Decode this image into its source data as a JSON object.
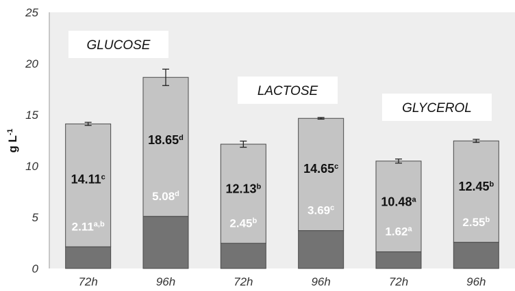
{
  "chart_data": {
    "type": "bar",
    "stacked": true,
    "categories": [
      "72h",
      "96h",
      "72h",
      "96h",
      "72h",
      "96h"
    ],
    "groups": [
      "GLUCOSE",
      "LACTOSE",
      "GLYCEROL"
    ],
    "ylabel_main": "g L",
    "ylabel_sup": "-1",
    "ylim": [
      0,
      25
    ],
    "yticks": [
      0,
      5,
      10,
      15,
      20,
      25
    ],
    "grid": false,
    "totals": [
      14.11,
      18.65,
      12.13,
      14.65,
      10.48,
      12.45
    ],
    "total_error": [
      0.15,
      0.8,
      0.3,
      0.08,
      0.2,
      0.15
    ],
    "total_labels": [
      {
        "value": "14.11",
        "sup": "c"
      },
      {
        "value": "18.65",
        "sup": "d"
      },
      {
        "value": "12.13",
        "sup": "b"
      },
      {
        "value": "14.65",
        "sup": "c"
      },
      {
        "value": "10.48",
        "sup": "a"
      },
      {
        "value": "12.45",
        "sup": "b"
      }
    ],
    "lower": [
      2.11,
      5.08,
      2.45,
      3.69,
      1.62,
      2.55
    ],
    "lower_labels": [
      {
        "value": "2.11",
        "sup": "a,b"
      },
      {
        "value": "5.08",
        "sup": "d"
      },
      {
        "value": "2.45",
        "sup": "b"
      },
      {
        "value": "3.69",
        "sup": "c"
      },
      {
        "value": "1.62",
        "sup": "a"
      },
      {
        "value": "2.55",
        "sup": "b"
      }
    ],
    "colors": {
      "upper": "#c4c4c4",
      "lower": "#737373",
      "border": "#4a4a4a",
      "plot_bg": "#eeeeee"
    }
  }
}
